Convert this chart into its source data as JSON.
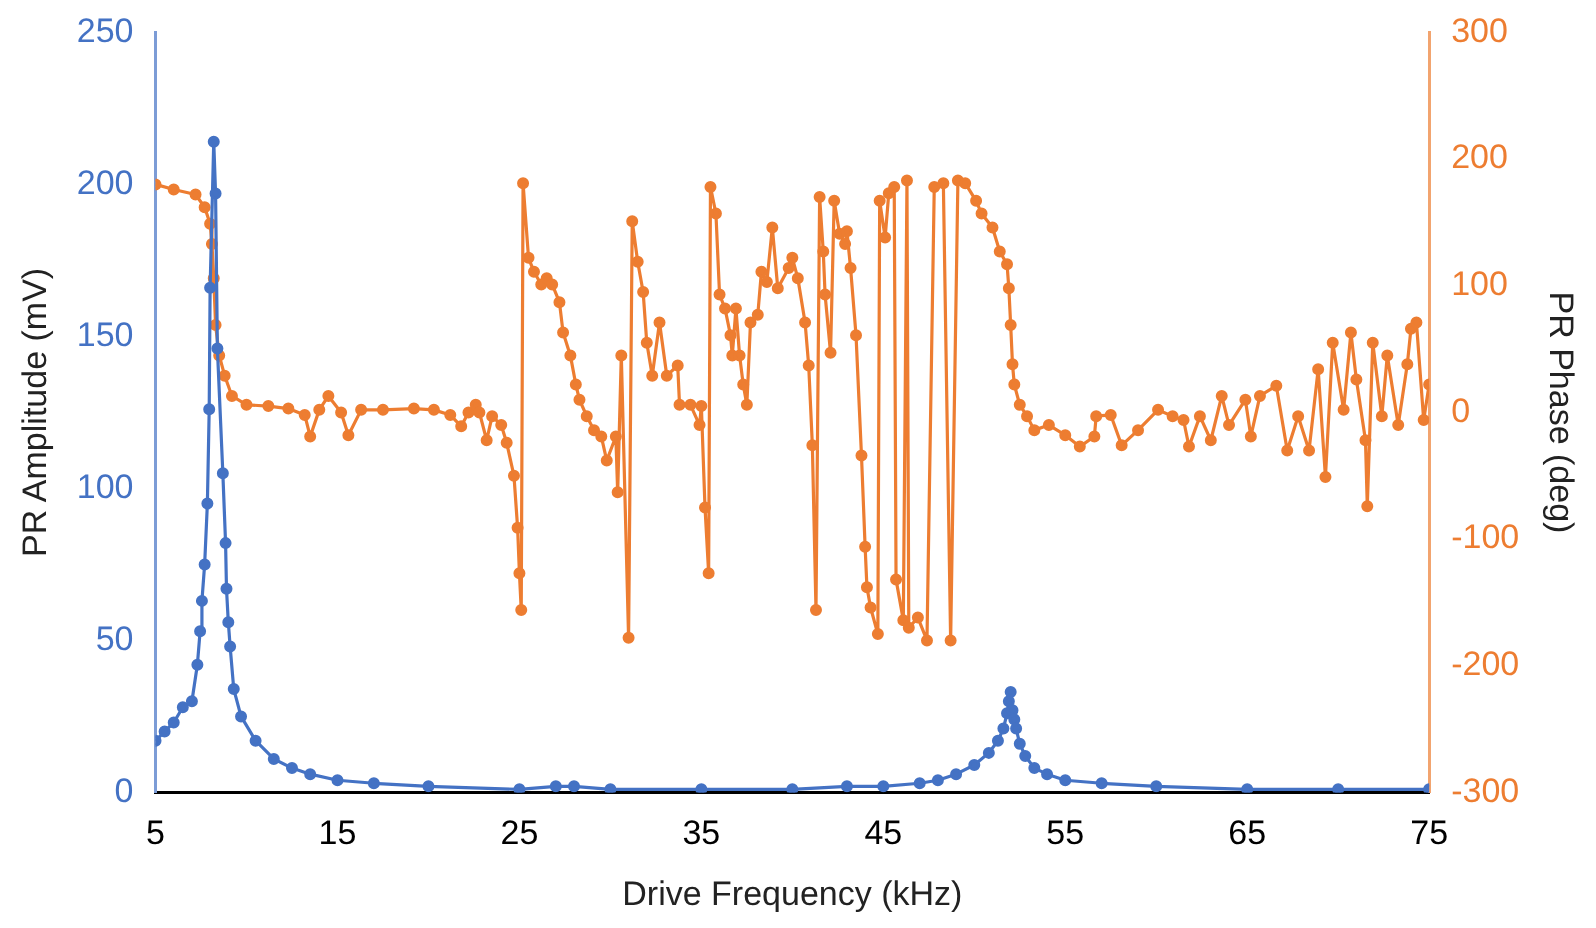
{
  "chart_data": {
    "type": "line",
    "xlabel": "Drive Frequency (kHz)",
    "ylabel": "PR Amplitude (mV)",
    "y2label": "PR Phase (deg)",
    "xlim": [
      5,
      75
    ],
    "xticks": [
      5,
      15,
      25,
      35,
      45,
      55,
      65,
      75
    ],
    "ylim": [
      0,
      250
    ],
    "yticks": [
      0,
      50,
      100,
      150,
      200,
      250
    ],
    "y2lim": [
      -300,
      300
    ],
    "y2ticks": [
      -300,
      -200,
      -100,
      0,
      100,
      200,
      300
    ],
    "grid": false,
    "legend": false,
    "marker": "circle",
    "line_style": "solid",
    "series": [
      {
        "color": "#4472c4",
        "axis": "y",
        "x": [
          5,
          5.5,
          6,
          6.5,
          7,
          7.3,
          7.45,
          7.55,
          7.7,
          7.85,
          7.95,
          8,
          8.2,
          8.3,
          8.4,
          8.7,
          8.85,
          8.9,
          9,
          9.1,
          9.3,
          9.7,
          10.5,
          11.5,
          12.5,
          13.5,
          15,
          17,
          20,
          25,
          27,
          28,
          30,
          35,
          40,
          43,
          45,
          47,
          48,
          49,
          50,
          50.8,
          51.3,
          51.6,
          51.8,
          51.9,
          52,
          52.1,
          52.2,
          52.3,
          52.5,
          52.8,
          53.3,
          54,
          55,
          57,
          60,
          65,
          70,
          75
        ],
        "values": [
          17,
          20,
          23,
          28,
          30,
          42,
          53,
          63,
          75,
          95,
          126,
          166,
          214,
          197,
          146,
          105,
          82,
          67,
          56,
          48,
          34,
          25,
          17,
          11,
          8,
          6,
          4,
          3,
          2,
          1,
          2,
          2,
          1,
          1,
          1,
          2,
          2,
          3,
          4,
          6,
          9,
          13,
          17,
          21,
          26,
          30,
          33,
          27,
          24,
          21,
          16,
          12,
          8,
          6,
          4,
          3,
          2,
          1,
          1,
          1
        ]
      },
      {
        "color": "#ed7d31",
        "axis": "y2",
        "x": [
          5,
          6,
          7.2,
          7.7,
          8,
          8.1,
          8.2,
          8.3,
          8.5,
          8.8,
          9.2,
          10,
          11.2,
          12.3,
          13.2,
          13.5,
          14,
          14.5,
          15.2,
          15.6,
          16.3,
          17.5,
          19.2,
          20.3,
          21.2,
          21.8,
          22.2,
          22.6,
          22.8,
          23.2,
          23.5,
          24,
          24.3,
          24.7,
          24.9,
          25,
          25.1,
          25.2,
          25.5,
          25.8,
          26.2,
          26.5,
          26.8,
          27.2,
          27.4,
          27.8,
          28.1,
          28.3,
          28.7,
          29.1,
          29.5,
          29.8,
          30.3,
          30.4,
          30.6,
          31,
          31.2,
          31.5,
          31.8,
          32,
          32.3,
          32.7,
          33.1,
          33.7,
          33.8,
          34.4,
          34.9,
          35,
          35.2,
          35.4,
          35.5,
          35.8,
          36,
          36.3,
          36.6,
          36.7,
          36.9,
          37.1,
          37.3,
          37.5,
          37.7,
          38.1,
          38.3,
          38.6,
          38.9,
          39.2,
          39.8,
          40,
          40.3,
          40.7,
          40.9,
          41.1,
          41.3,
          41.5,
          41.7,
          41.8,
          42.1,
          42.3,
          42.6,
          42.9,
          43,
          43.2,
          43.5,
          43.8,
          44,
          44.1,
          44.3,
          44.7,
          44.8,
          45.1,
          45.3,
          45.6,
          45.7,
          46.1,
          46.3,
          46.4,
          46.9,
          47.4,
          47.8,
          48.3,
          48.7,
          49.1,
          49.5,
          50.1,
          50.4,
          51,
          51.4,
          51.8,
          51.9,
          52,
          52.1,
          52.2,
          52.5,
          52.9,
          53.3,
          54.1,
          55,
          55.8,
          56.6,
          56.7,
          57.5,
          58.1,
          59,
          60.1,
          60.9,
          61.5,
          61.8,
          62.4,
          63,
          63.6,
          64,
          64.9,
          65.2,
          65.7,
          66.6,
          67.2,
          67.8,
          68.4,
          68.9,
          69.3,
          69.7,
          70.3,
          70.7,
          71,
          71.5,
          71.6,
          71.9,
          72.4,
          72.7,
          73.3,
          73.8,
          74,
          74.3,
          74.7,
          75
        ],
        "values": [
          180,
          176,
          172,
          162,
          149,
          133,
          106,
          69,
          45,
          29,
          13,
          6,
          5,
          3,
          -2,
          -19,
          2,
          13,
          0,
          -18,
          2,
          2,
          3,
          2,
          -2,
          -11,
          0,
          6,
          0,
          -22,
          -3,
          -10,
          -24,
          -50,
          -91,
          -127,
          -156,
          181,
          122,
          111,
          101,
          106,
          101,
          87,
          63,
          45,
          22,
          10,
          -3,
          -14,
          -19,
          -38,
          -19,
          -63,
          45,
          -178,
          151,
          119,
          95,
          55,
          29,
          71,
          29,
          37,
          6,
          6,
          -10,
          5,
          -75,
          -127,
          178,
          157,
          93,
          82,
          61,
          45,
          82,
          45,
          22,
          6,
          71,
          77,
          111,
          103,
          146,
          98,
          114,
          122,
          106,
          71,
          37,
          -26,
          -156,
          170,
          127,
          93,
          47,
          167,
          141,
          133,
          143,
          114,
          61,
          -34,
          -106,
          -138,
          -154,
          -175,
          167,
          138,
          173,
          178,
          -132,
          -164,
          183,
          -170,
          -162,
          -180,
          178,
          181,
          -180,
          183,
          181,
          167,
          157,
          146,
          127,
          117,
          98,
          69,
          38,
          22,
          6,
          -3,
          -14,
          -10,
          -18,
          -27,
          -19,
          -3,
          -2,
          -26,
          -14,
          2,
          -3,
          -6,
          -27,
          -3,
          -22,
          13,
          -10,
          10,
          -19,
          13,
          21,
          -30,
          -3,
          -30,
          34,
          -51,
          55,
          2,
          63,
          26,
          -22,
          -74,
          55,
          -3,
          45,
          -10,
          38,
          66,
          71,
          -6,
          22
        ]
      }
    ]
  }
}
